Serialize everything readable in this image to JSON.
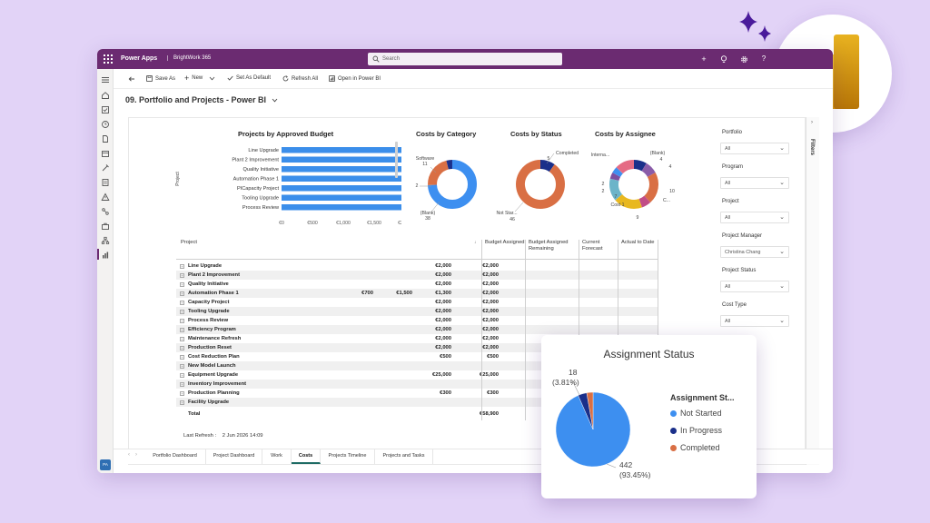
{
  "colors": {
    "purple_bar": "#6b2b71",
    "accent_blue": "#3d8ff0",
    "navy": "#1a2f8a",
    "orange": "#d96f44",
    "bar_blue": "#3b8eea",
    "legend_pink": "#e56b84",
    "legend_gold": "#e8b820",
    "legend_purple": "#8a5ca8"
  },
  "topbar": {
    "app_name": "Power Apps",
    "env_name": "BrightWork 365",
    "search_placeholder": "Search",
    "icons": [
      "add-icon",
      "lightbulb-icon",
      "settings-icon",
      "help-icon"
    ]
  },
  "commands": [
    {
      "label": "Save As",
      "icon": "save-icon"
    },
    {
      "label": "New",
      "icon": "plus-icon"
    },
    {
      "label": "Set As Default",
      "icon": "check-icon"
    },
    {
      "label": "Refresh All",
      "icon": "refresh-icon"
    },
    {
      "label": "Open in Power BI",
      "icon": "powerbi-icon"
    }
  ],
  "page_title": "09. Portfolio and Projects - Power BI",
  "charts": {
    "budget": {
      "title": "Projects by Approved Budget",
      "ylabel": "Project",
      "categories": [
        "Line Upgrade",
        "Plant 2 Improvement",
        "Quality Initiative",
        "Automation Phase 1",
        "PICapacity Project",
        "Tooling Upgrade",
        "Process Review"
      ],
      "values": [
        2000,
        2000,
        2000,
        2000,
        2000,
        2000,
        2000
      ],
      "value_labels": [
        "€2,000",
        "€2,000",
        "€2,000",
        "€2,000",
        "€2,000",
        "€2,000",
        "€2,000"
      ],
      "ticks": [
        "€0",
        "€500",
        "€1,000",
        "€1,500",
        "€2,000"
      ],
      "xlim": [
        0,
        2000
      ]
    },
    "category": {
      "title": "Costs by Category",
      "labels": [
        {
          "text": "Software",
          "value": "11"
        },
        {
          "text": "",
          "value": "2"
        },
        {
          "text": "(Blank)",
          "value": "38"
        }
      ]
    },
    "status": {
      "title": "Costs by Status",
      "labels": [
        {
          "text": "Completed",
          "value": "5"
        },
        {
          "text": "Not Star...",
          "value": "46"
        }
      ]
    },
    "assignee": {
      "title": "Costs by Assignee",
      "labels": [
        "Interna...",
        "(Blank)",
        "4",
        "4",
        "10",
        "C...",
        "9",
        "Cost 1",
        "7",
        "2",
        "2"
      ]
    }
  },
  "chart_data": [
    {
      "type": "bar",
      "title": "Projects by Approved Budget",
      "ylabel": "Project",
      "categories": [
        "Line Upgrade",
        "Plant 2 Improvement",
        "Quality Initiative",
        "Automation Phase 1",
        "PICapacity Project",
        "Tooling Upgrade",
        "Process Review"
      ],
      "values": [
        2000,
        2000,
        2000,
        2000,
        2000,
        2000,
        2000
      ],
      "xlim": [
        0,
        2000
      ]
    },
    {
      "type": "pie",
      "title": "Costs by Category",
      "categories": [
        "Software",
        "",
        "(Blank)"
      ],
      "values": [
        11,
        2,
        38
      ]
    },
    {
      "type": "pie",
      "title": "Costs by Status",
      "categories": [
        "Completed",
        "Not Star..."
      ],
      "values": [
        5,
        46
      ]
    },
    {
      "type": "pie",
      "title": "Assignment Status",
      "series": [
        {
          "name": "Assignment St...",
          "values": [
            442,
            18,
            13
          ]
        }
      ],
      "categories": [
        "Not Started",
        "In Progress",
        "Completed"
      ],
      "values": [
        442,
        18,
        13
      ]
    }
  ],
  "filters": {
    "label": "Filters",
    "items": [
      {
        "label": "Portfolio",
        "value": "All"
      },
      {
        "label": "Program",
        "value": "All"
      },
      {
        "label": "Project",
        "value": "All"
      },
      {
        "label": "Project Manager",
        "value": "Christina Chang"
      },
      {
        "label": "Project Status",
        "value": "All"
      },
      {
        "label": "Cost Type",
        "value": "All"
      }
    ]
  },
  "table": {
    "headers": [
      "Project",
      "Budget Assigned",
      "Budget Assigned Remaining",
      "Current Forecast",
      "Actual to Date"
    ],
    "rows": [
      {
        "name": "Line Upgrade",
        "budget": "€2,000",
        "remaining": "€2,000",
        "forecast": "",
        "actual": ""
      },
      {
        "name": "Plant 2 Improvement",
        "budget": "€2,000",
        "remaining": "€2,000",
        "forecast": "",
        "actual": ""
      },
      {
        "name": "Quality Initiative",
        "budget": "€2,000",
        "remaining": "€2,000",
        "forecast": "",
        "actual": ""
      },
      {
        "name": "Automation Phase 1",
        "budget": "€2,000",
        "remaining": "€1,300",
        "forecast": "€1,500",
        "actual": "€700"
      },
      {
        "name": "Capacity Project",
        "budget": "€2,000",
        "remaining": "€2,000",
        "forecast": "",
        "actual": ""
      },
      {
        "name": "Tooling Upgrade",
        "budget": "€2,000",
        "remaining": "€2,000",
        "forecast": "",
        "actual": ""
      },
      {
        "name": "Process Review",
        "budget": "€2,000",
        "remaining": "€2,000",
        "forecast": "",
        "actual": ""
      },
      {
        "name": "Efficiency Program",
        "budget": "€2,000",
        "remaining": "€2,000",
        "forecast": "",
        "actual": ""
      },
      {
        "name": "Maintenance Refresh",
        "budget": "€2,000",
        "remaining": "€2,000",
        "forecast": "",
        "actual": ""
      },
      {
        "name": "Production Reset",
        "budget": "€2,000",
        "remaining": "€2,000",
        "forecast": "",
        "actual": ""
      },
      {
        "name": "Cost Reduction Plan",
        "budget": "€500",
        "remaining": "€500",
        "forecast": "",
        "actual": ""
      },
      {
        "name": "New Model Launch",
        "budget": "",
        "remaining": "",
        "forecast": "",
        "actual": ""
      },
      {
        "name": "Equipment Upgrade",
        "budget": "€25,000",
        "remaining": "€25,000",
        "forecast": "",
        "actual": ""
      },
      {
        "name": "Inventory Improvement",
        "budget": "",
        "remaining": "",
        "forecast": "",
        "actual": ""
      },
      {
        "name": "Production Planning",
        "budget": "€300",
        "remaining": "€300",
        "forecast": "",
        "actual": ""
      },
      {
        "name": "Facility Upgrade",
        "budget": "",
        "remaining": "",
        "forecast": "",
        "actual": ""
      }
    ],
    "total_label": "Total",
    "total_budget": "€58,900",
    "sort_indicator": "↓"
  },
  "last_refresh": {
    "label": "Last Refresh :",
    "value": "2 Jun 2026 14:09"
  },
  "tabs": [
    {
      "label": "Portfolio Dashboard",
      "active": false
    },
    {
      "label": "Project Dashboard",
      "active": false
    },
    {
      "label": "Work",
      "active": false
    },
    {
      "label": "Costs",
      "active": true
    },
    {
      "label": "Projects Timeline",
      "active": false
    },
    {
      "label": "Projects and Tasks",
      "active": false
    }
  ],
  "avatar_initials": "PA",
  "popup": {
    "title": "Assignment Status",
    "legend_title": "Assignment St...",
    "legend": [
      {
        "label": "Not Started",
        "color": "#3d8ff0"
      },
      {
        "label": "In Progress",
        "color": "#1a2f8a"
      },
      {
        "label": "Completed",
        "color": "#d96f44"
      }
    ],
    "label_top_value": "18",
    "label_top_pct": "(3.81%)",
    "label_bottom_value": "442",
    "label_bottom_pct": "(93.45%)"
  }
}
